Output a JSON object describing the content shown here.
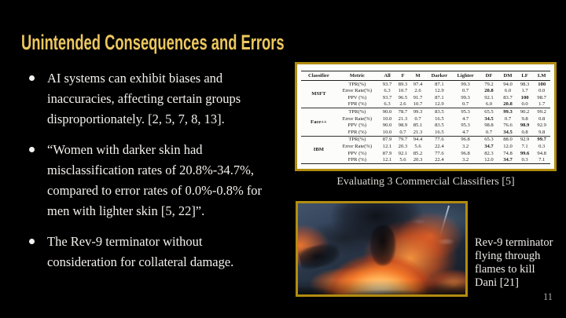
{
  "slide": {
    "title": "Unintended Consequences and Errors",
    "page_number": "11",
    "accent_gold": "#ECC75F",
    "border_gold": "#B28C10",
    "background": "#000000"
  },
  "bullets": [
    "AI systems can exhibit biases and\ninaccuracies, affecting certain groups\ndisproportionately. [2, 5, 7, 8, 13].",
    "“Women with darker skin had\nmisclassification rates of 20.8%-34.7%,\ncompared to error rates of 0.0%-0.8% for\nmen with lighter skin [5, 22]”.",
    "The Rev-9 terminator without\nconsideration for collateral damage."
  ],
  "table_caption": "Evaluating 3 Commercial Classifiers [5]",
  "image_caption": "Rev-9 terminator\nflying through\nflames to kill\nDani [21]",
  "classifier_table": {
    "headers": [
      "Classifier",
      "Metric",
      "All",
      "F",
      "M",
      "Darker",
      "Lighter",
      "DF",
      "DM",
      "LF",
      "LM"
    ],
    "groups": [
      {
        "classifier": "MSFT",
        "rows": [
          {
            "metric": "TPR(%)",
            "values": [
              "93.7",
              "89.3",
              "97.4",
              "87.1",
              "99.3",
              "79.2",
              "94.0",
              "98.3",
              "100"
            ],
            "bold_index": 8
          },
          {
            "metric": "Error Rate(%)",
            "values": [
              "6.3",
              "10.7",
              "2.6",
              "12.9",
              "0.7",
              "20.8",
              "6.0",
              "1.7",
              "0.0"
            ],
            "bold_index": 5
          },
          {
            "metric": "PPV (%)",
            "values": [
              "93.7",
              "96.5",
              "91.7",
              "87.1",
              "99.3",
              "92.1",
              "83.7",
              "100",
              "98.7"
            ],
            "bold_index": 7
          },
          {
            "metric": "FPR (%)",
            "values": [
              "6.3",
              "2.6",
              "10.7",
              "12.9",
              "0.7",
              "6.0",
              "20.8",
              "0.0",
              "1.7"
            ],
            "bold_index": 6
          }
        ]
      },
      {
        "classifier": "Face++",
        "rows": [
          {
            "metric": "TPR(%)",
            "values": [
              "90.0",
              "78.7",
              "99.3",
              "83.5",
              "95.3",
              "65.5",
              "99.3",
              "90.2",
              "99.2"
            ],
            "bold_index": 6
          },
          {
            "metric": "Error Rate(%)",
            "values": [
              "10.0",
              "21.3",
              "0.7",
              "16.5",
              "4.7",
              "34.5",
              "0.7",
              "9.8",
              "0.8"
            ],
            "bold_index": 5
          },
          {
            "metric": "PPV (%)",
            "values": [
              "90.0",
              "98.9",
              "85.1",
              "83.5",
              "95.3",
              "98.8",
              "76.6",
              "98.9",
              "92.9"
            ],
            "bold_index": 7
          },
          {
            "metric": "FPR (%)",
            "values": [
              "10.0",
              "0.7",
              "21.3",
              "16.5",
              "4.7",
              "0.7",
              "34.5",
              "0.8",
              "9.8"
            ],
            "bold_index": 6
          }
        ]
      },
      {
        "classifier": "IBM",
        "rows": [
          {
            "metric": "TPR(%)",
            "values": [
              "87.9",
              "79.7",
              "94.4",
              "77.6",
              "96.8",
              "65.3",
              "88.0",
              "92.9",
              "99.7"
            ],
            "bold_index": 8
          },
          {
            "metric": "Error Rate(%)",
            "values": [
              "12.1",
              "20.3",
              "5.6",
              "22.4",
              "3.2",
              "34.7",
              "12.0",
              "7.1",
              "0.3"
            ],
            "bold_index": 5
          },
          {
            "metric": "PPV (%)",
            "values": [
              "87.9",
              "92.1",
              "85.2",
              "77.6",
              "96.8",
              "82.3",
              "74.8",
              "99.6",
              "94.8"
            ],
            "bold_index": 7
          },
          {
            "metric": "FPR (%)",
            "values": [
              "12.1",
              "5.6",
              "20.3",
              "22.4",
              "3.2",
              "12.0",
              "34.7",
              "0.3",
              "7.1"
            ],
            "bold_index": 6
          }
        ]
      }
    ]
  }
}
